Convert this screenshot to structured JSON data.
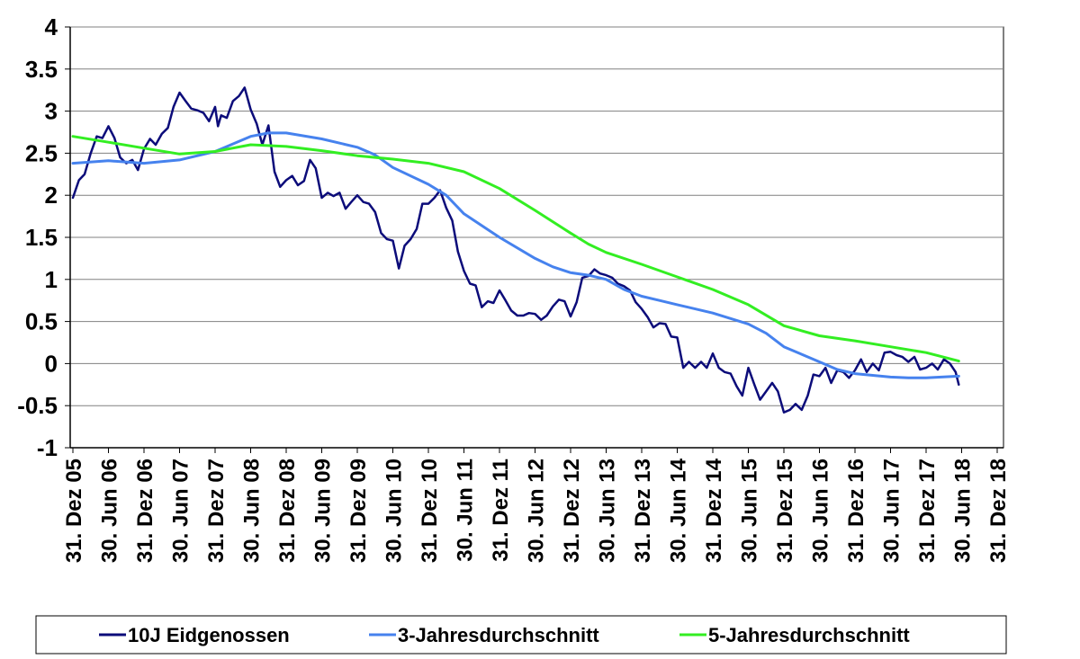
{
  "chart_data": {
    "type": "line",
    "title": "",
    "xlabel": "",
    "ylabel": "",
    "ylim": [
      -1,
      4
    ],
    "y_ticks": [
      "4",
      "3.5",
      "3",
      "2.5",
      "2",
      "1.5",
      "1",
      "0.5",
      "0",
      "-0.5",
      "-1"
    ],
    "x_ticks": [
      "31. Dez 05",
      "30. Jun 06",
      "31. Dez 06",
      "30. Jun 07",
      "31. Dez 07",
      "30. Jun 08",
      "31. Dez 08",
      "30. Jun 09",
      "31. Dez 09",
      "30. Jun 10",
      "31. Dez 10",
      "30. Jun 11",
      "31. Dez 11",
      "30. Jun 12",
      "31. Dez 12",
      "30. Jun 13",
      "31. Dez 13",
      "30. Jun 14",
      "31. Dez 14",
      "30. Jun 15",
      "31. Dez 15",
      "30. Jun 16",
      "31. Dez 16",
      "30. Jun 17",
      "31. Dez 17",
      "30. Jun 18",
      "31. Dez 18"
    ],
    "grid": true,
    "legend_position": "bottom",
    "colors": {
      "eidgenossen": "#0c0c7a",
      "avg3": "#4682ee",
      "avg5": "#33ee22"
    },
    "series": [
      {
        "name": "10J Eidgenossen",
        "key": "eidgenossen",
        "points": [
          [
            0,
            1.97
          ],
          [
            0.17,
            2.18
          ],
          [
            0.33,
            2.25
          ],
          [
            0.5,
            2.5
          ],
          [
            0.67,
            2.7
          ],
          [
            0.83,
            2.68
          ],
          [
            1,
            2.82
          ],
          [
            1.17,
            2.68
          ],
          [
            1.33,
            2.45
          ],
          [
            1.5,
            2.38
          ],
          [
            1.67,
            2.42
          ],
          [
            1.83,
            2.3
          ],
          [
            2,
            2.55
          ],
          [
            2.17,
            2.67
          ],
          [
            2.33,
            2.6
          ],
          [
            2.5,
            2.73
          ],
          [
            2.67,
            2.8
          ],
          [
            2.83,
            3.05
          ],
          [
            3,
            3.22
          ],
          [
            3.17,
            3.12
          ],
          [
            3.33,
            3.03
          ],
          [
            3.5,
            3.01
          ],
          [
            3.67,
            2.98
          ],
          [
            3.83,
            2.88
          ],
          [
            4,
            3.05
          ],
          [
            4.08,
            2.82
          ],
          [
            4.17,
            2.95
          ],
          [
            4.33,
            2.92
          ],
          [
            4.5,
            3.12
          ],
          [
            4.67,
            3.18
          ],
          [
            4.83,
            3.28
          ],
          [
            5,
            3.02
          ],
          [
            5.17,
            2.85
          ],
          [
            5.33,
            2.6
          ],
          [
            5.5,
            2.83
          ],
          [
            5.67,
            2.28
          ],
          [
            5.83,
            2.1
          ],
          [
            6,
            2.18
          ],
          [
            6.17,
            2.23
          ],
          [
            6.33,
            2.12
          ],
          [
            6.5,
            2.17
          ],
          [
            6.67,
            2.42
          ],
          [
            6.83,
            2.32
          ],
          [
            7,
            1.97
          ],
          [
            7.17,
            2.03
          ],
          [
            7.33,
            1.99
          ],
          [
            7.5,
            2.03
          ],
          [
            7.67,
            1.84
          ],
          [
            7.83,
            1.92
          ],
          [
            8,
            2.0
          ],
          [
            8.17,
            1.92
          ],
          [
            8.33,
            1.9
          ],
          [
            8.5,
            1.8
          ],
          [
            8.67,
            1.55
          ],
          [
            8.83,
            1.48
          ],
          [
            9,
            1.46
          ],
          [
            9.17,
            1.13
          ],
          [
            9.33,
            1.4
          ],
          [
            9.5,
            1.48
          ],
          [
            9.67,
            1.6
          ],
          [
            9.83,
            1.9
          ],
          [
            10,
            1.9
          ],
          [
            10.17,
            1.97
          ],
          [
            10.33,
            2.06
          ],
          [
            10.5,
            1.85
          ],
          [
            10.67,
            1.7
          ],
          [
            10.83,
            1.33
          ],
          [
            11,
            1.1
          ],
          [
            11.17,
            0.95
          ],
          [
            11.33,
            0.93
          ],
          [
            11.5,
            0.67
          ],
          [
            11.67,
            0.74
          ],
          [
            11.83,
            0.72
          ],
          [
            12,
            0.87
          ],
          [
            12.17,
            0.75
          ],
          [
            12.33,
            0.63
          ],
          [
            12.5,
            0.57
          ],
          [
            12.67,
            0.57
          ],
          [
            12.83,
            0.6
          ],
          [
            13,
            0.59
          ],
          [
            13.17,
            0.52
          ],
          [
            13.33,
            0.57
          ],
          [
            13.5,
            0.68
          ],
          [
            13.67,
            0.76
          ],
          [
            13.83,
            0.74
          ],
          [
            14,
            0.56
          ],
          [
            14.17,
            0.73
          ],
          [
            14.33,
            1.02
          ],
          [
            14.5,
            1.04
          ],
          [
            14.67,
            1.12
          ],
          [
            14.83,
            1.07
          ],
          [
            15,
            1.05
          ],
          [
            15.17,
            1.02
          ],
          [
            15.33,
            0.95
          ],
          [
            15.5,
            0.92
          ],
          [
            15.67,
            0.87
          ],
          [
            15.83,
            0.73
          ],
          [
            16,
            0.65
          ],
          [
            16.17,
            0.55
          ],
          [
            16.33,
            0.43
          ],
          [
            16.5,
            0.48
          ],
          [
            16.67,
            0.47
          ],
          [
            16.83,
            0.32
          ],
          [
            17,
            0.31
          ],
          [
            17.17,
            -0.05
          ],
          [
            17.33,
            0.02
          ],
          [
            17.5,
            -0.05
          ],
          [
            17.67,
            0.02
          ],
          [
            17.83,
            -0.05
          ],
          [
            18,
            0.12
          ],
          [
            18.17,
            -0.05
          ],
          [
            18.33,
            -0.1
          ],
          [
            18.5,
            -0.12
          ],
          [
            18.67,
            -0.27
          ],
          [
            18.83,
            -0.38
          ],
          [
            19,
            -0.05
          ],
          [
            19.17,
            -0.25
          ],
          [
            19.33,
            -0.43
          ],
          [
            19.5,
            -0.33
          ],
          [
            19.67,
            -0.23
          ],
          [
            19.83,
            -0.33
          ],
          [
            20,
            -0.58
          ],
          [
            20.17,
            -0.55
          ],
          [
            20.33,
            -0.48
          ],
          [
            20.5,
            -0.55
          ],
          [
            20.67,
            -0.38
          ],
          [
            20.83,
            -0.13
          ],
          [
            21,
            -0.15
          ],
          [
            21.17,
            -0.05
          ],
          [
            21.33,
            -0.23
          ],
          [
            21.5,
            -0.08
          ],
          [
            21.67,
            -0.1
          ],
          [
            21.83,
            -0.17
          ],
          [
            22,
            -0.08
          ],
          [
            22.17,
            0.05
          ],
          [
            22.33,
            -0.1
          ],
          [
            22.5,
            0.0
          ],
          [
            22.67,
            -0.08
          ],
          [
            22.83,
            0.13
          ],
          [
            23,
            0.14
          ],
          [
            23.17,
            0.1
          ],
          [
            23.33,
            0.08
          ],
          [
            23.5,
            0.02
          ],
          [
            23.67,
            0.08
          ],
          [
            23.83,
            -0.07
          ],
          [
            24,
            -0.05
          ],
          [
            24.17,
            0.0
          ],
          [
            24.33,
            -0.07
          ],
          [
            24.5,
            0.05
          ],
          [
            24.67,
            0.0
          ],
          [
            24.83,
            -0.1
          ],
          [
            24.92,
            -0.25
          ]
        ]
      },
      {
        "name": "3-Jahresdurchschnitt",
        "key": "avg3",
        "points": [
          [
            0,
            2.38
          ],
          [
            1,
            2.41
          ],
          [
            2,
            2.38
          ],
          [
            3,
            2.42
          ],
          [
            4,
            2.52
          ],
          [
            5,
            2.7
          ],
          [
            5.5,
            2.74
          ],
          [
            6,
            2.74
          ],
          [
            7,
            2.67
          ],
          [
            8,
            2.57
          ],
          [
            8.5,
            2.48
          ],
          [
            9,
            2.33
          ],
          [
            10,
            2.13
          ],
          [
            10.5,
            2.0
          ],
          [
            11,
            1.78
          ],
          [
            12,
            1.5
          ],
          [
            13,
            1.25
          ],
          [
            13.5,
            1.15
          ],
          [
            14,
            1.08
          ],
          [
            14.5,
            1.05
          ],
          [
            15,
            1.0
          ],
          [
            15.5,
            0.88
          ],
          [
            16,
            0.8
          ],
          [
            16.5,
            0.75
          ],
          [
            17,
            0.7
          ],
          [
            18,
            0.6
          ],
          [
            19,
            0.47
          ],
          [
            19.5,
            0.36
          ],
          [
            20,
            0.2
          ],
          [
            21,
            0.02
          ],
          [
            21.5,
            -0.07
          ],
          [
            22,
            -0.12
          ],
          [
            23,
            -0.16
          ],
          [
            23.5,
            -0.17
          ],
          [
            24,
            -0.17
          ],
          [
            24.92,
            -0.15
          ]
        ]
      },
      {
        "name": "5-Jahresdurchschnitt",
        "key": "avg5",
        "points": [
          [
            0,
            2.7
          ],
          [
            1,
            2.63
          ],
          [
            2,
            2.56
          ],
          [
            3,
            2.49
          ],
          [
            4,
            2.52
          ],
          [
            5,
            2.6
          ],
          [
            6,
            2.58
          ],
          [
            7,
            2.53
          ],
          [
            8,
            2.47
          ],
          [
            9,
            2.43
          ],
          [
            10,
            2.38
          ],
          [
            11,
            2.28
          ],
          [
            12,
            2.08
          ],
          [
            13,
            1.82
          ],
          [
            14,
            1.55
          ],
          [
            14.5,
            1.42
          ],
          [
            15,
            1.32
          ],
          [
            16,
            1.18
          ],
          [
            17,
            1.03
          ],
          [
            18,
            0.88
          ],
          [
            19,
            0.7
          ],
          [
            20,
            0.45
          ],
          [
            21,
            0.33
          ],
          [
            22,
            0.27
          ],
          [
            23,
            0.2
          ],
          [
            24,
            0.13
          ],
          [
            24.92,
            0.03
          ]
        ]
      }
    ]
  }
}
